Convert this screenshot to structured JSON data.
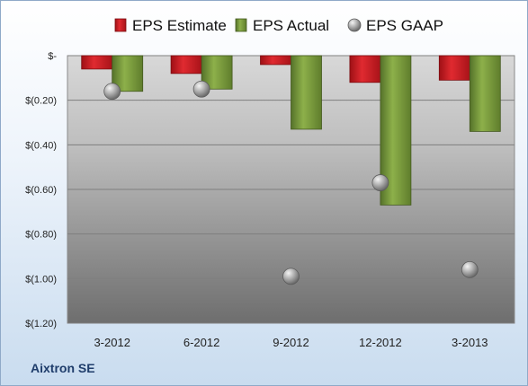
{
  "company_name": "Aixtron SE",
  "chart_data": {
    "type": "bar",
    "categories": [
      "3-2012",
      "6-2012",
      "9-2012",
      "12-2012",
      "3-2013"
    ],
    "series": [
      {
        "name": "EPS Estimate",
        "kind": "bar",
        "color": "#d9242c",
        "values": [
          -0.06,
          -0.08,
          -0.04,
          -0.12,
          -0.11
        ]
      },
      {
        "name": "EPS Actual",
        "kind": "bar",
        "color": "#7a9a3a",
        "values": [
          -0.16,
          -0.15,
          -0.33,
          -0.67,
          -0.34
        ]
      },
      {
        "name": "EPS GAAP",
        "kind": "scatter",
        "color": "#a7a7a7",
        "values": [
          -0.16,
          -0.15,
          -0.99,
          -0.57,
          -0.96
        ]
      }
    ],
    "y_ticks": [
      0,
      -0.2,
      -0.4,
      -0.6,
      -0.8,
      -1.0,
      -1.2
    ],
    "y_tick_labels": [
      "$-",
      "$(0.20)",
      "$(0.40)",
      "$(0.60)",
      "$(0.80)",
      "$(1.00)",
      "$(1.20)"
    ],
    "ylim": [
      -1.2,
      0
    ],
    "grid": true,
    "legend_position": "top"
  }
}
